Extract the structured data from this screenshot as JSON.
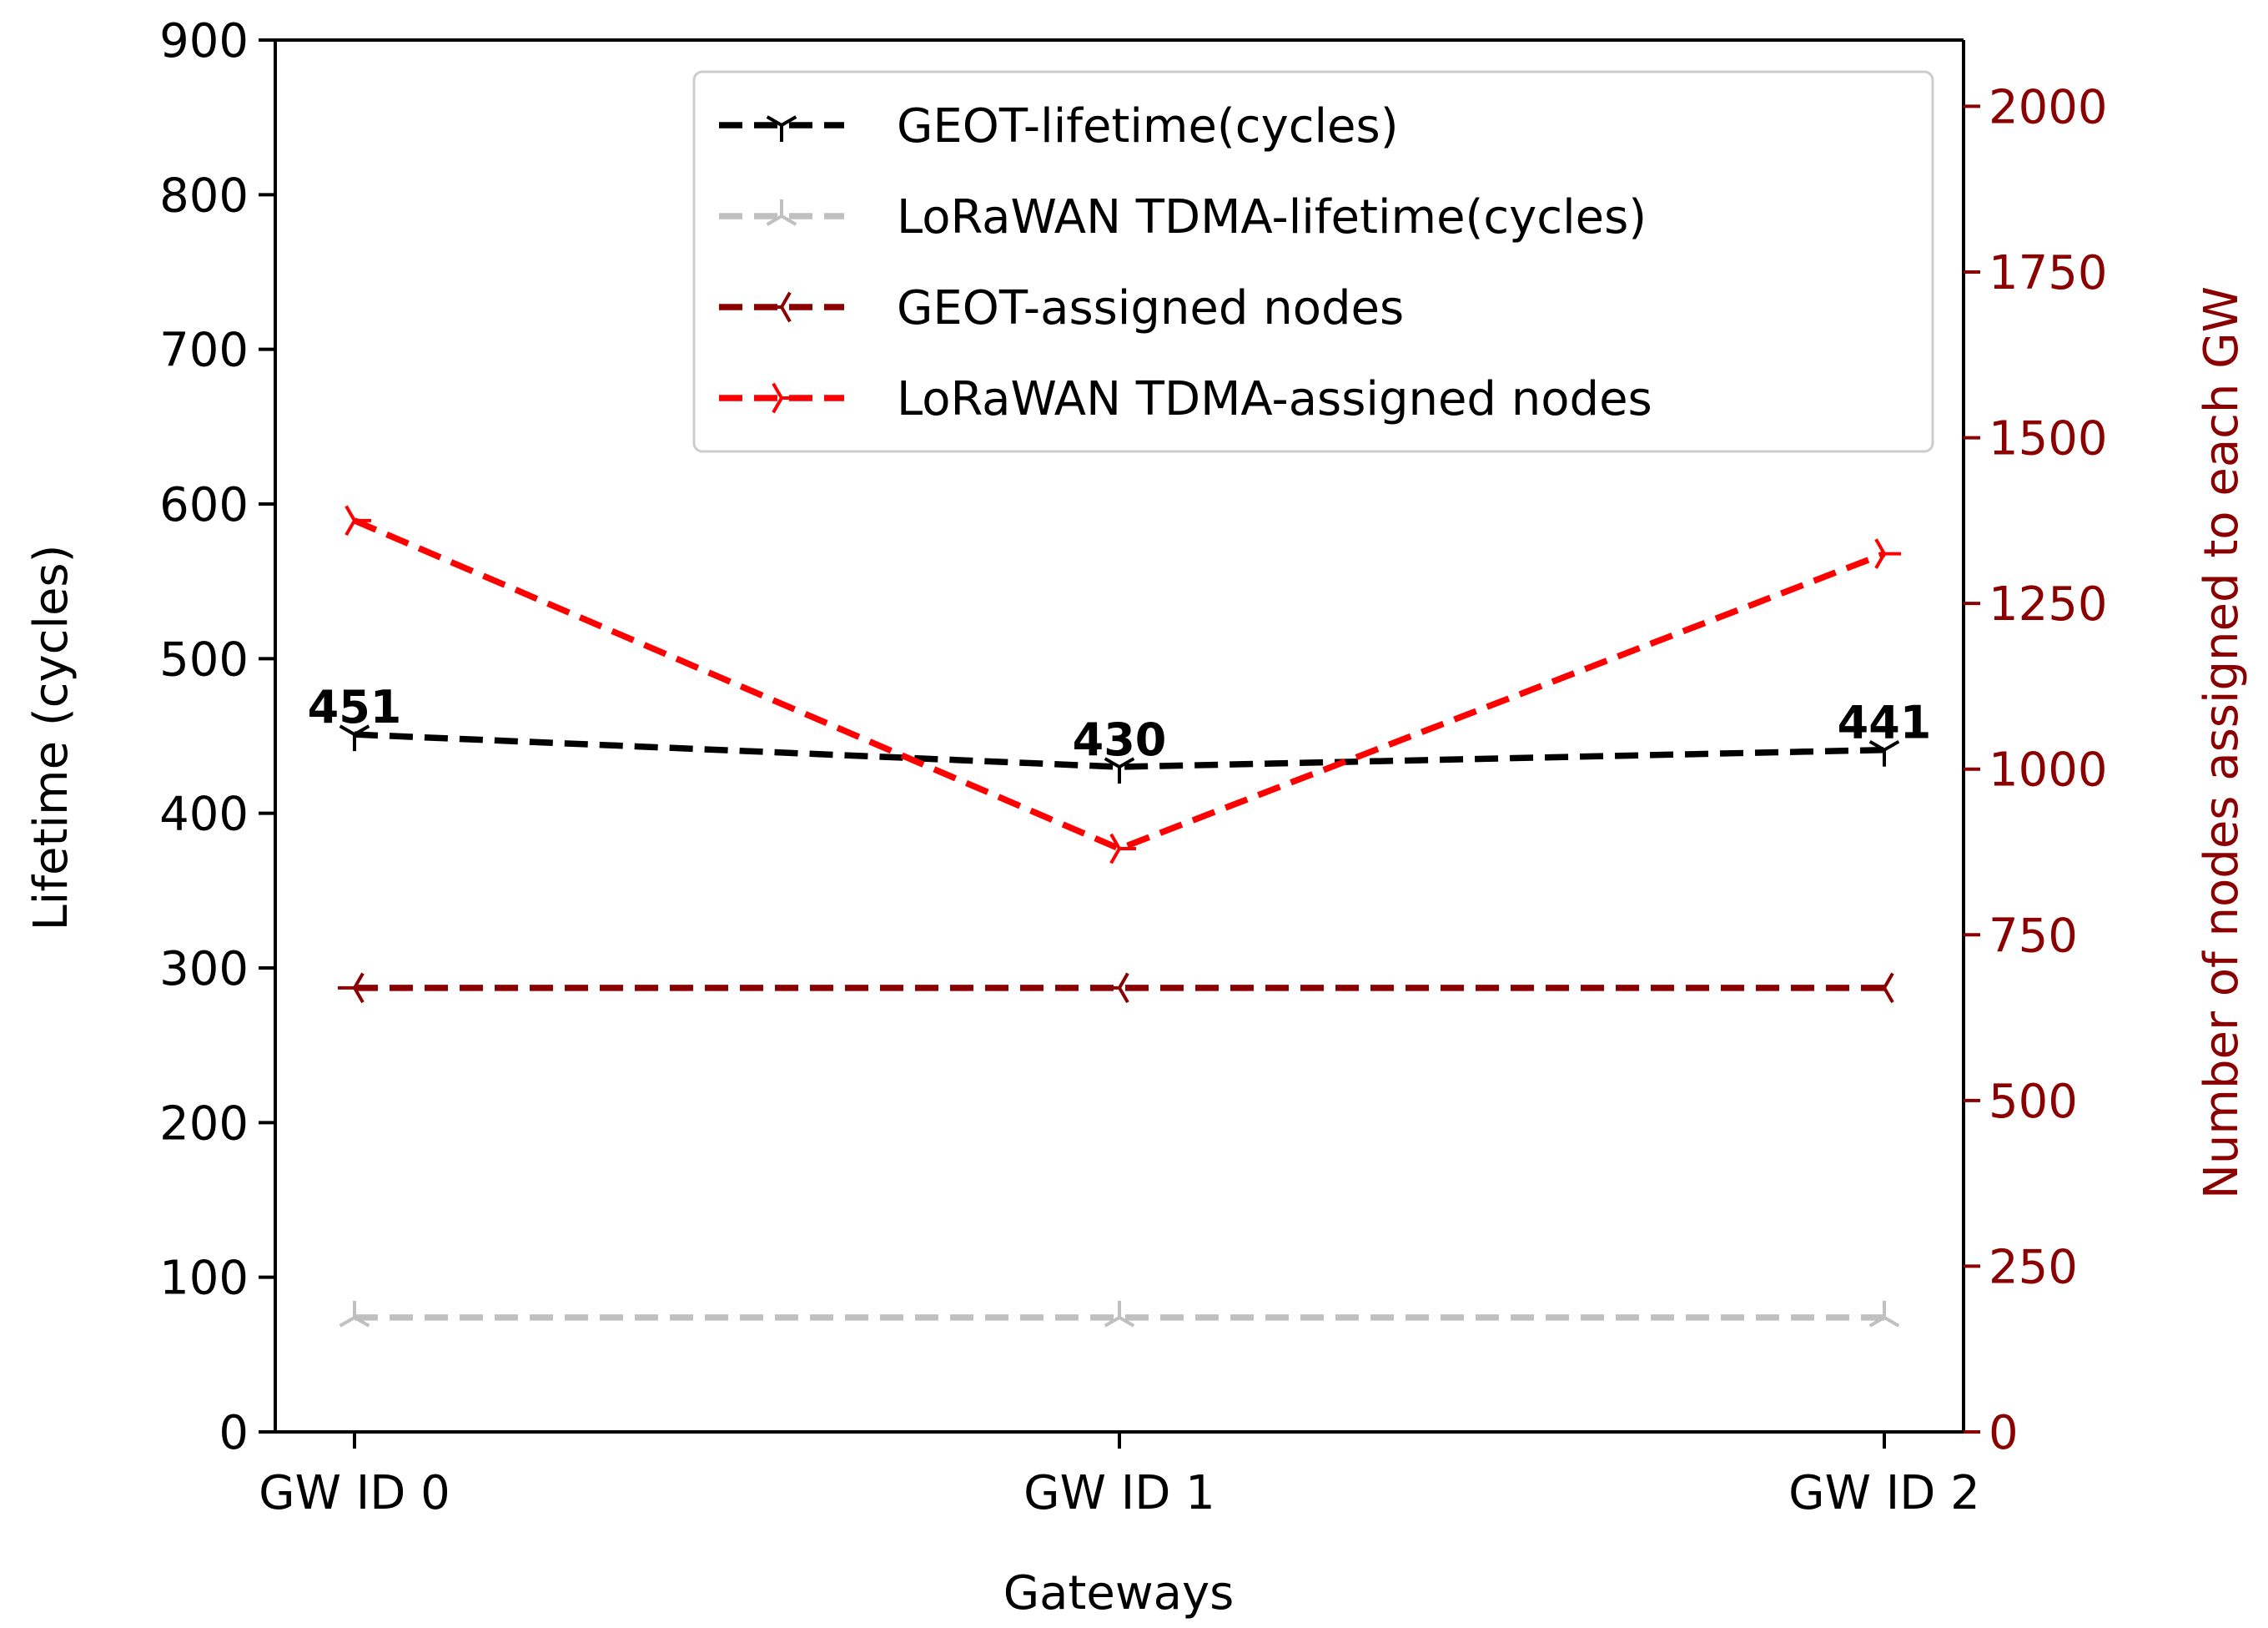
{
  "chart_data": {
    "type": "line",
    "xlabel": "Gateways",
    "ylabel_left": "Lifetime (cycles)",
    "ylabel_right": "Number of nodes assigned to each GW",
    "categories": [
      "GW ID 0",
      "GW ID 1",
      "GW ID 2"
    ],
    "y_left": {
      "range": [
        0,
        900
      ],
      "ticks": [
        "0",
        "100",
        "200",
        "300",
        "400",
        "500",
        "600",
        "700",
        "800",
        "900"
      ]
    },
    "y_right": {
      "range": [
        0,
        2100
      ],
      "ticks": [
        "0",
        "250",
        "500",
        "750",
        "1000",
        "1250",
        "1500",
        "1750",
        "2000"
      ],
      "color": "#8b0000"
    },
    "series": [
      {
        "name": "GEOT-lifetime(cycles)",
        "axis": "left",
        "values": [
          451,
          430,
          441
        ],
        "color": "#000000",
        "marker": "tri_down"
      },
      {
        "name": "LoRaWAN TDMA-lifetime(cycles)",
        "axis": "left",
        "values": [
          74,
          74,
          74
        ],
        "color": "#c0c0c0",
        "marker": "tri_up"
      },
      {
        "name": "GEOT-assigned nodes",
        "axis": "right",
        "values": [
          670,
          670,
          670
        ],
        "color": "#8b0000",
        "marker": "tri_left"
      },
      {
        "name": "LoRaWAN TDMA-assigned nodes",
        "axis": "right",
        "values": [
          1375,
          880,
          1325
        ],
        "color": "#ff0000",
        "marker": "tri_right"
      }
    ],
    "annotations": [
      {
        "category": "GW ID 0",
        "value": 451,
        "text": "451"
      },
      {
        "category": "GW ID 1",
        "value": 430,
        "text": "430"
      },
      {
        "category": "GW ID 2",
        "value": 441,
        "text": "441"
      }
    ],
    "legend": "top-right",
    "grid": false
  }
}
